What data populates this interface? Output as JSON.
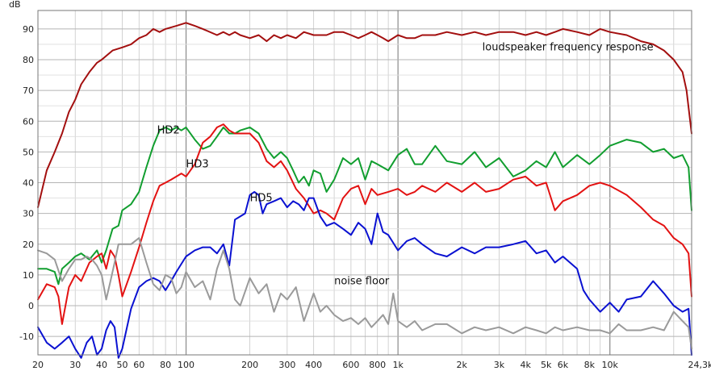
{
  "chart_data": {
    "type": "line",
    "title": "",
    "ylabel": "dB",
    "xlabel": "",
    "x_scale": "log",
    "xlim": [
      20,
      24300
    ],
    "ylim": [
      -16,
      96
    ],
    "grid": true,
    "x_tick_labels": [
      {
        "v": 20,
        "t": "20"
      },
      {
        "v": 30,
        "t": "30"
      },
      {
        "v": 40,
        "t": "40"
      },
      {
        "v": 50,
        "t": "50"
      },
      {
        "v": 60,
        "t": "60"
      },
      {
        "v": 80,
        "t": "80"
      },
      {
        "v": 100,
        "t": "100"
      },
      {
        "v": 200,
        "t": "200"
      },
      {
        "v": 300,
        "t": "300"
      },
      {
        "v": 400,
        "t": "400"
      },
      {
        "v": 600,
        "t": "600"
      },
      {
        "v": 800,
        "t": "800"
      },
      {
        "v": 1000,
        "t": "1k"
      },
      {
        "v": 2000,
        "t": "2k"
      },
      {
        "v": 3000,
        "t": "3k"
      },
      {
        "v": 4000,
        "t": "4k"
      },
      {
        "v": 5000,
        "t": "5k"
      },
      {
        "v": 6000,
        "t": "6k"
      },
      {
        "v": 8000,
        "t": "8k"
      },
      {
        "v": 10000,
        "t": "10k"
      },
      {
        "v": 24300,
        "t": "24,3kHz"
      }
    ],
    "y_tick_labels": [
      {
        "v": 90,
        "t": "90"
      },
      {
        "v": 80,
        "t": "80"
      },
      {
        "v": 70,
        "t": "70"
      },
      {
        "v": 60,
        "t": "60"
      },
      {
        "v": 50,
        "t": "50"
      },
      {
        "v": 40,
        "t": "40"
      },
      {
        "v": 30,
        "t": "30"
      },
      {
        "v": 20,
        "t": "20"
      },
      {
        "v": 10,
        "t": "10"
      },
      {
        "v": 0,
        "t": "0"
      },
      {
        "v": -10,
        "t": "-10"
      }
    ],
    "annotations": [
      {
        "text": "loudspeaker frequency response",
        "x": 2500,
        "y": 83
      },
      {
        "text": "HD2",
        "x": 73,
        "y": 56
      },
      {
        "text": "HD3",
        "x": 100,
        "y": 45
      },
      {
        "text": "HD5",
        "x": 200,
        "y": 34
      },
      {
        "text": "noise floor",
        "x": 500,
        "y": 7
      }
    ],
    "series": [
      {
        "name": "loudspeaker frequency response",
        "color": "#a30f0f",
        "x": [
          20,
          22,
          24,
          26,
          28,
          30,
          32,
          35,
          38,
          40,
          45,
          50,
          55,
          60,
          65,
          70,
          75,
          80,
          90,
          100,
          110,
          120,
          140,
          150,
          160,
          170,
          180,
          200,
          220,
          240,
          260,
          280,
          300,
          330,
          360,
          400,
          430,
          460,
          500,
          550,
          600,
          650,
          700,
          750,
          800,
          850,
          900,
          1000,
          1100,
          1200,
          1300,
          1500,
          1700,
          2000,
          2300,
          2600,
          3000,
          3500,
          4000,
          4500,
          5000,
          5500,
          6000,
          7000,
          8000,
          9000,
          10000,
          12000,
          14000,
          16000,
          18000,
          20000,
          22000,
          23000,
          24300
        ],
        "y": [
          32,
          44,
          50,
          56,
          63,
          67,
          72,
          76,
          79,
          80,
          83,
          84,
          85,
          87,
          88,
          90,
          89,
          90,
          91,
          92,
          91,
          90,
          88,
          89,
          88,
          89,
          88,
          87,
          88,
          86,
          88,
          87,
          88,
          87,
          89,
          88,
          88,
          88,
          89,
          89,
          88,
          87,
          88,
          89,
          88,
          87,
          86,
          88,
          87,
          87,
          88,
          88,
          89,
          88,
          89,
          88,
          89,
          89,
          88,
          89,
          88,
          89,
          90,
          89,
          88,
          90,
          89,
          88,
          86,
          85,
          83,
          80,
          76,
          70,
          56
        ]
      },
      {
        "name": "HD2",
        "color": "#119e2f",
        "x": [
          20,
          22,
          24,
          25,
          26,
          28,
          30,
          32,
          35,
          38,
          40,
          42,
          45,
          48,
          50,
          55,
          60,
          65,
          70,
          75,
          80,
          85,
          90,
          95,
          100,
          110,
          120,
          130,
          140,
          150,
          160,
          170,
          180,
          200,
          220,
          240,
          260,
          280,
          300,
          320,
          340,
          360,
          380,
          400,
          430,
          460,
          500,
          550,
          600,
          650,
          700,
          750,
          800,
          900,
          1000,
          1100,
          1200,
          1300,
          1500,
          1700,
          2000,
          2300,
          2600,
          3000,
          3500,
          4000,
          4500,
          5000,
          5500,
          6000,
          7000,
          8000,
          9000,
          10000,
          12000,
          14000,
          16000,
          18000,
          20000,
          22000,
          23500,
          24300
        ],
        "y": [
          12,
          12,
          11,
          7,
          12,
          14,
          16,
          17,
          15,
          18,
          14,
          18,
          25,
          26,
          31,
          33,
          37,
          45,
          52,
          57,
          58,
          57,
          58,
          57,
          58,
          54,
          51,
          52,
          55,
          58,
          56,
          56,
          57,
          58,
          56,
          51,
          48,
          50,
          48,
          44,
          40,
          42,
          39,
          44,
          43,
          37,
          41,
          48,
          46,
          48,
          41,
          47,
          46,
          44,
          49,
          51,
          46,
          46,
          52,
          47,
          46,
          50,
          45,
          48,
          42,
          44,
          47,
          45,
          50,
          45,
          49,
          46,
          49,
          52,
          54,
          53,
          50,
          51,
          48,
          49,
          45,
          31
        ]
      },
      {
        "name": "HD3",
        "color": "#e31212",
        "x": [
          20,
          22,
          24,
          25,
          26,
          28,
          30,
          32,
          35,
          38,
          40,
          42,
          44,
          46,
          48,
          50,
          55,
          60,
          65,
          70,
          75,
          80,
          85,
          90,
          95,
          100,
          110,
          120,
          130,
          140,
          150,
          160,
          170,
          180,
          200,
          220,
          240,
          260,
          280,
          300,
          330,
          360,
          400,
          430,
          460,
          500,
          550,
          600,
          650,
          700,
          750,
          800,
          900,
          1000,
          1100,
          1200,
          1300,
          1500,
          1700,
          2000,
          2300,
          2600,
          3000,
          3500,
          4000,
          4500,
          5000,
          5500,
          6000,
          7000,
          8000,
          9000,
          10000,
          12000,
          14000,
          16000,
          18000,
          20000,
          22000,
          23500,
          24300
        ],
        "y": [
          2,
          7,
          6,
          3,
          -6,
          6,
          10,
          8,
          14,
          16,
          17,
          12,
          18,
          16,
          10,
          3,
          11,
          19,
          27,
          34,
          39,
          40,
          41,
          42,
          43,
          42,
          46,
          53,
          55,
          58,
          59,
          57,
          56,
          56,
          56,
          53,
          47,
          45,
          47,
          44,
          38,
          35,
          30,
          31,
          30,
          28,
          35,
          38,
          39,
          33,
          38,
          36,
          37,
          38,
          36,
          37,
          39,
          37,
          40,
          37,
          40,
          37,
          38,
          41,
          42,
          39,
          40,
          31,
          34,
          36,
          39,
          40,
          39,
          36,
          32,
          28,
          26,
          22,
          20,
          17,
          3
        ]
      },
      {
        "name": "HD5",
        "color": "#0a11d1",
        "x": [
          20,
          22,
          24,
          26,
          28,
          30,
          32,
          34,
          36,
          38,
          40,
          42,
          44,
          46,
          48,
          50,
          55,
          60,
          65,
          70,
          75,
          80,
          85,
          90,
          100,
          110,
          120,
          130,
          140,
          150,
          160,
          170,
          180,
          190,
          200,
          210,
          220,
          230,
          240,
          260,
          280,
          300,
          320,
          340,
          360,
          380,
          400,
          430,
          460,
          500,
          550,
          600,
          650,
          700,
          750,
          800,
          850,
          900,
          1000,
          1100,
          1200,
          1300,
          1500,
          1700,
          2000,
          2300,
          2600,
          3000,
          3500,
          4000,
          4500,
          5000,
          5500,
          6000,
          7000,
          7500,
          8000,
          9000,
          10000,
          11000,
          12000,
          14000,
          16000,
          18000,
          20000,
          22000,
          23500,
          24300
        ],
        "y": [
          -7,
          -12,
          -14,
          -12,
          -10,
          -14,
          -17,
          -12,
          -10,
          -16,
          -14,
          -8,
          -5,
          -7,
          -17,
          -14,
          -1,
          6,
          8,
          9,
          8,
          5,
          8,
          11,
          16,
          18,
          19,
          19,
          17,
          20,
          13,
          28,
          29,
          30,
          36,
          37,
          36,
          30,
          33,
          34,
          35,
          32,
          34,
          33,
          31,
          35,
          35,
          29,
          26,
          27,
          25,
          23,
          27,
          25,
          20,
          30,
          24,
          23,
          18,
          21,
          22,
          20,
          17,
          16,
          19,
          17,
          19,
          19,
          20,
          21,
          17,
          18,
          14,
          16,
          12,
          5,
          2,
          -2,
          1,
          -2,
          2,
          3,
          8,
          4,
          0,
          -2,
          -1,
          -16
        ]
      },
      {
        "name": "noise floor",
        "color": "#9a9a9a",
        "x": [
          20,
          22,
          24,
          26,
          28,
          30,
          32,
          34,
          36,
          38,
          40,
          42,
          44,
          46,
          48,
          50,
          55,
          60,
          65,
          70,
          75,
          80,
          85,
          90,
          95,
          100,
          110,
          120,
          130,
          140,
          150,
          160,
          170,
          180,
          200,
          220,
          240,
          260,
          280,
          300,
          330,
          360,
          400,
          430,
          460,
          500,
          550,
          600,
          650,
          700,
          750,
          800,
          850,
          900,
          950,
          1000,
          1100,
          1200,
          1300,
          1500,
          1700,
          2000,
          2300,
          2600,
          3000,
          3500,
          4000,
          4500,
          5000,
          5500,
          6000,
          7000,
          8000,
          9000,
          10000,
          11000,
          12000,
          14000,
          16000,
          18000,
          20000,
          22000,
          23500,
          24300
        ],
        "y": [
          18,
          17,
          15,
          8,
          12,
          15,
          15,
          16,
          15,
          13,
          10,
          2,
          8,
          14,
          20,
          20,
          20,
          22,
          14,
          7,
          5,
          10,
          9,
          4,
          6,
          11,
          6,
          8,
          2,
          12,
          18,
          12,
          2,
          0,
          9,
          4,
          7,
          -2,
          4,
          2,
          6,
          -5,
          4,
          -2,
          0,
          -3,
          -5,
          -4,
          -6,
          -4,
          -7,
          -5,
          -3,
          -6,
          4,
          -5,
          -7,
          -5,
          -8,
          -6,
          -6,
          -9,
          -7,
          -8,
          -7,
          -9,
          -7,
          -8,
          -9,
          -7,
          -8,
          -7,
          -8,
          -8,
          -9,
          -6,
          -8,
          -8,
          -7,
          -8,
          -2,
          -5,
          -7,
          -14
        ]
      }
    ]
  }
}
